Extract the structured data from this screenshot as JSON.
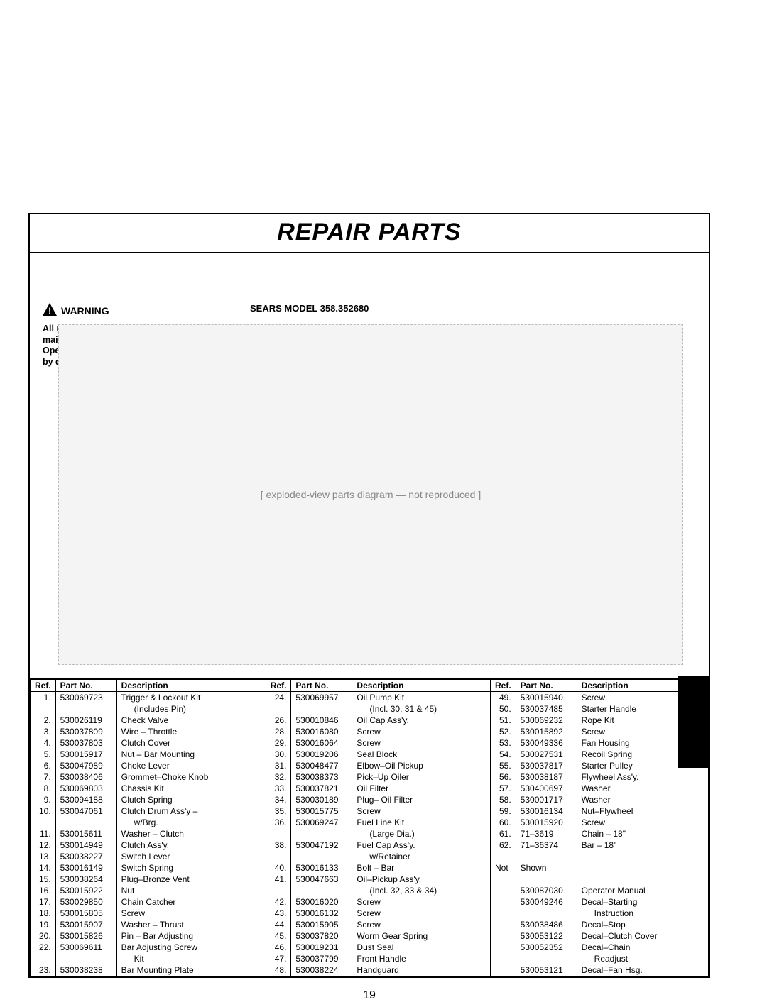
{
  "title": "REPAIR PARTS",
  "model_label": "SEARS MODEL 358.352680",
  "warning": {
    "label": "WARNING",
    "text": "All repairs, adjustments and maintenance not described in the Operator's Manual must be performed by qualified service personnel."
  },
  "diagram_placeholder": "[ exploded-view parts diagram — not reproduced ]",
  "headers": {
    "ref": "Ref.",
    "part": "Part No.",
    "desc": "Description"
  },
  "page_number": "19",
  "col1": [
    {
      "ref": "1.",
      "pn": "530069723",
      "desc": "Trigger & Lockout Kit",
      "sub": "(Includes Pin)"
    },
    {
      "ref": "2.",
      "pn": "530026119",
      "desc": "Check Valve"
    },
    {
      "ref": "3.",
      "pn": "530037809",
      "desc": "Wire – Throttle"
    },
    {
      "ref": "4.",
      "pn": "530037803",
      "desc": "Clutch Cover"
    },
    {
      "ref": "5.",
      "pn": "530015917",
      "desc": "Nut – Bar Mounting"
    },
    {
      "ref": "6.",
      "pn": "530047989",
      "desc": "Choke Lever"
    },
    {
      "ref": "7.",
      "pn": "530038406",
      "desc": "Grommet–Choke Knob"
    },
    {
      "ref": "8.",
      "pn": "530069803",
      "desc": "Chassis Kit"
    },
    {
      "ref": "9.",
      "pn": "530094188",
      "desc": "Clutch Spring"
    },
    {
      "ref": "10.",
      "pn": "530047061",
      "desc": "Clutch Drum Ass'y –",
      "sub": "w/Brg."
    },
    {
      "ref": "11.",
      "pn": "530015611",
      "desc": "Washer – Clutch"
    },
    {
      "ref": "12.",
      "pn": "530014949",
      "desc": "Clutch Ass'y."
    },
    {
      "ref": "13.",
      "pn": "530038227",
      "desc": "Switch Lever"
    },
    {
      "ref": "14.",
      "pn": "530016149",
      "desc": "Switch Spring"
    },
    {
      "ref": "15.",
      "pn": "530038264",
      "desc": "Plug–Bronze Vent"
    },
    {
      "ref": "16.",
      "pn": "530015922",
      "desc": "Nut"
    },
    {
      "ref": "17.",
      "pn": "530029850",
      "desc": "Chain Catcher"
    },
    {
      "ref": "18.",
      "pn": "530015805",
      "desc": "Screw"
    },
    {
      "ref": "19.",
      "pn": "530015907",
      "desc": "Washer – Thrust"
    },
    {
      "ref": "20.",
      "pn": "530015826",
      "desc": "Pin – Bar Adjusting"
    },
    {
      "ref": "22.",
      "pn": "530069611",
      "desc": "Bar Adjusting Screw",
      "sub": "Kit"
    },
    {
      "ref": "23.",
      "pn": "530038238",
      "desc": "Bar Mounting Plate"
    }
  ],
  "col2": [
    {
      "ref": "24.",
      "pn": "530069957",
      "desc": "Oil Pump Kit",
      "sub": "(Incl. 30, 31 & 45)"
    },
    {
      "ref": "26.",
      "pn": "530010846",
      "desc": "Oil Cap Ass'y."
    },
    {
      "ref": "28.",
      "pn": "530016080",
      "desc": "Screw"
    },
    {
      "ref": "29.",
      "pn": "530016064",
      "desc": "Screw"
    },
    {
      "ref": "30.",
      "pn": "530019206",
      "desc": "Seal Block"
    },
    {
      "ref": "31.",
      "pn": "530048477",
      "desc": "Elbow–Oil Pickup"
    },
    {
      "ref": "32.",
      "pn": "530038373",
      "desc": "Pick–Up Oiler"
    },
    {
      "ref": "33.",
      "pn": "530037821",
      "desc": "Oil Filter"
    },
    {
      "ref": "34.",
      "pn": "530030189",
      "desc": "Plug– Oil Filter"
    },
    {
      "ref": "35.",
      "pn": "530015775",
      "desc": "Screw"
    },
    {
      "ref": "36.",
      "pn": "530069247",
      "desc": "Fuel Line Kit",
      "sub": "(Large Dia.)"
    },
    {
      "ref": "38.",
      "pn": "530047192",
      "desc": "Fuel Cap Ass'y.",
      "sub": "w/Retainer"
    },
    {
      "ref": "40.",
      "pn": "530016133",
      "desc": "Bolt – Bar"
    },
    {
      "ref": "41.",
      "pn": "530047663",
      "desc": "Oil–Pickup Ass'y.",
      "sub": "(Incl. 32, 33 & 34)"
    },
    {
      "ref": "42.",
      "pn": "530016020",
      "desc": "Screw"
    },
    {
      "ref": "43.",
      "pn": "530016132",
      "desc": "Screw"
    },
    {
      "ref": "44.",
      "pn": "530015905",
      "desc": "Screw"
    },
    {
      "ref": "45.",
      "pn": "530037820",
      "desc": "Worm Gear Spring"
    },
    {
      "ref": "46.",
      "pn": "530019231",
      "desc": "Dust Seal"
    },
    {
      "ref": "47.",
      "pn": "530037799",
      "desc": "Front Handle"
    },
    {
      "ref": "48.",
      "pn": "530038224",
      "desc": "Handguard"
    }
  ],
  "col3": [
    {
      "ref": "49.",
      "pn": "530015940",
      "desc": "Screw"
    },
    {
      "ref": "50.",
      "pn": "530037485",
      "desc": "Starter Handle"
    },
    {
      "ref": "51.",
      "pn": "530069232",
      "desc": "Rope Kit"
    },
    {
      "ref": "52.",
      "pn": "530015892",
      "desc": "Screw"
    },
    {
      "ref": "53.",
      "pn": "530049336",
      "desc": "Fan Housing"
    },
    {
      "ref": "54.",
      "pn": "530027531",
      "desc": "Recoil Spring"
    },
    {
      "ref": "55.",
      "pn": "530037817",
      "desc": "Starter Pulley"
    },
    {
      "ref": "56.",
      "pn": "530038187",
      "desc": "Flywheel Ass'y."
    },
    {
      "ref": "57.",
      "pn": "530400697",
      "desc": "Washer"
    },
    {
      "ref": "58.",
      "pn": "530001717",
      "desc": "Washer"
    },
    {
      "ref": "59.",
      "pn": "530016134",
      "desc": "Nut–Flywheel"
    },
    {
      "ref": "60.",
      "pn": "530015920",
      "desc": "Screw"
    },
    {
      "ref": "61.",
      "pn": "71–3619",
      "desc": "Chain – 18\""
    },
    {
      "ref": "62.",
      "pn": "71–36374",
      "desc": "Bar – 18\""
    }
  ],
  "not_shown_label": "Not Shown",
  "not_shown": [
    {
      "pn": "530087030",
      "desc": "Operator Manual"
    },
    {
      "pn": "530049246",
      "desc": "Decal–Starting",
      "sub": "Instruction"
    },
    {
      "pn": "530038486",
      "desc": "Decal–Stop"
    },
    {
      "pn": "530053122",
      "desc": "Decal–Clutch Cover"
    },
    {
      "pn": "530052352",
      "desc": "Decal–Chain",
      "sub": "Readjust"
    },
    {
      "pn": "530053121",
      "desc": "Decal–Fan Hsg."
    }
  ]
}
